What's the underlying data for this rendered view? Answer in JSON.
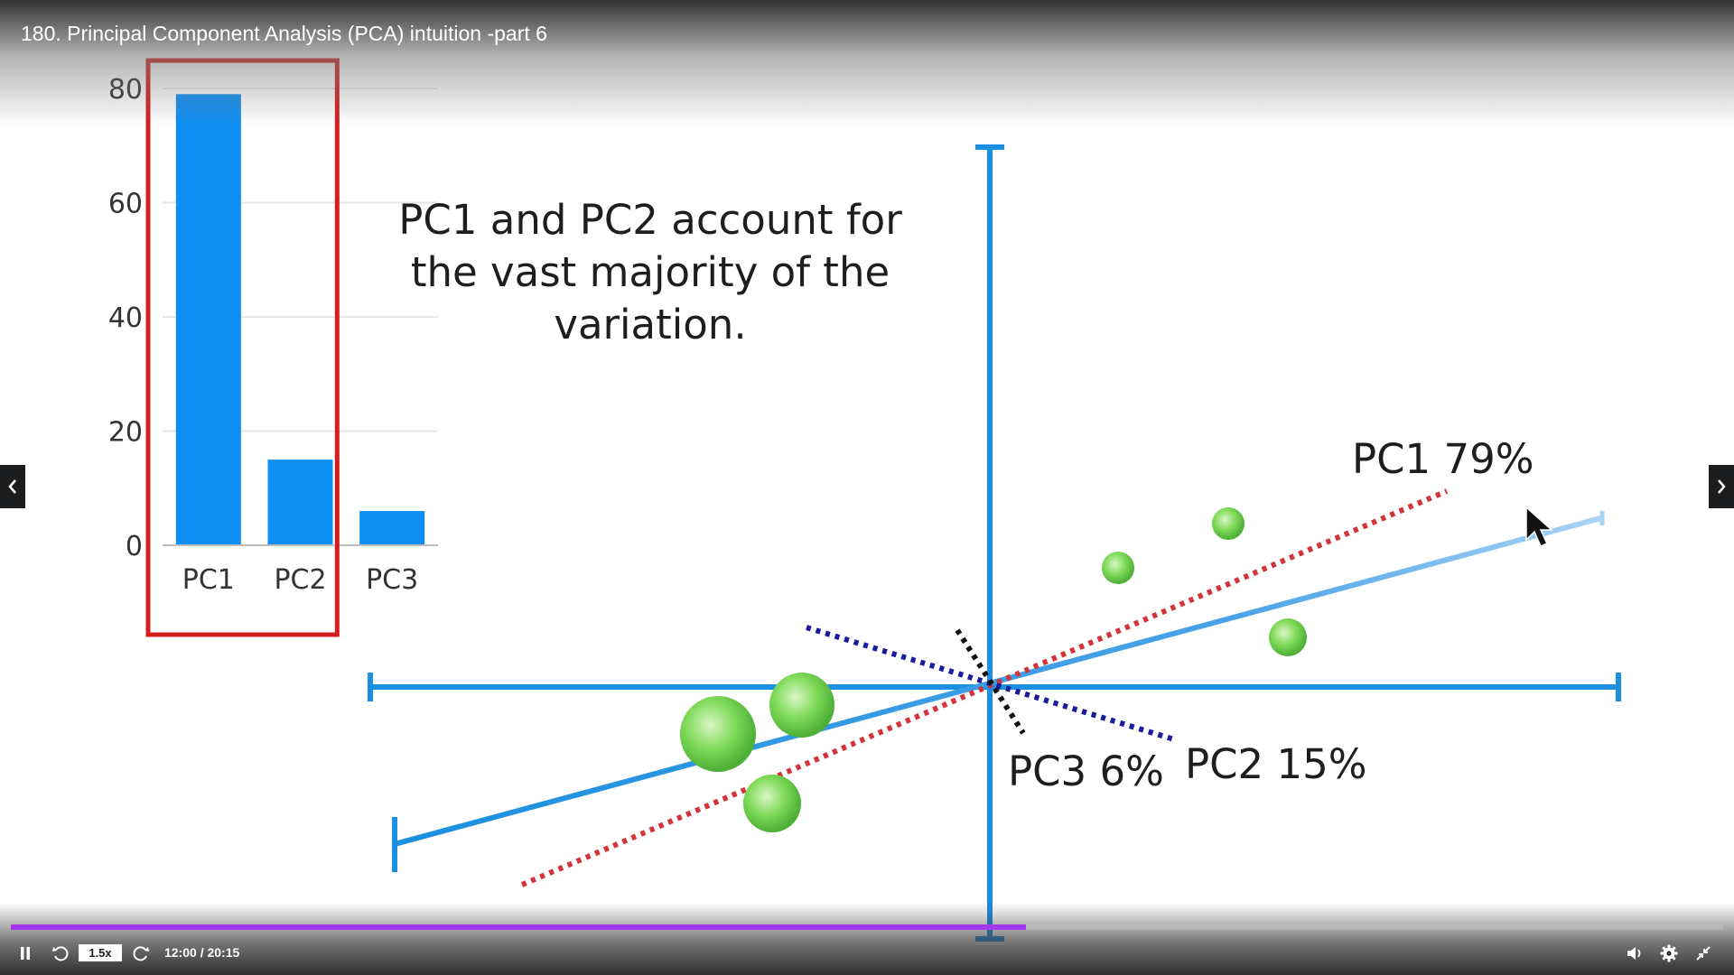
{
  "player": {
    "lecture_title": "180. Principal Component Analysis (PCA) intuition -part 6",
    "speed_label": "1.5x",
    "time_display": "12:00 / 20:15",
    "progress_fraction": 0.593,
    "accent_color": "#a435f0"
  },
  "slide": {
    "caption_lines": [
      "PC1 and PC2 account for",
      "the vast majority of the",
      "variation."
    ],
    "pc1_label": "PC1 79%",
    "pc2_label": "PC2 15%",
    "pc3_label": "PC3 6%",
    "axis_color": "#1b8fe0",
    "point_color": "#7ed957",
    "pc1_line_color": "#d3343a",
    "pc2_line_color": "#1b1c9c",
    "highlight_box_color": "#d21e1e"
  },
  "chart_data": {
    "type": "bar",
    "categories": [
      "PC1",
      "PC2",
      "PC3"
    ],
    "values": [
      79,
      15,
      6
    ],
    "yticks": [
      0,
      20,
      40,
      60,
      80
    ],
    "ylim": [
      0,
      80
    ],
    "grid": true,
    "bar_color": "#0d8ef2",
    "highlighted_categories": [
      "PC1",
      "PC2"
    ]
  },
  "icons": {
    "pause": "pause-icon",
    "rewind": "rewind-icon",
    "forward": "forward-icon",
    "volume": "volume-icon",
    "settings": "gear-icon",
    "fullscreen": "exit-fullscreen-icon",
    "prev": "chevron-left-icon",
    "next": "chevron-right-icon"
  }
}
